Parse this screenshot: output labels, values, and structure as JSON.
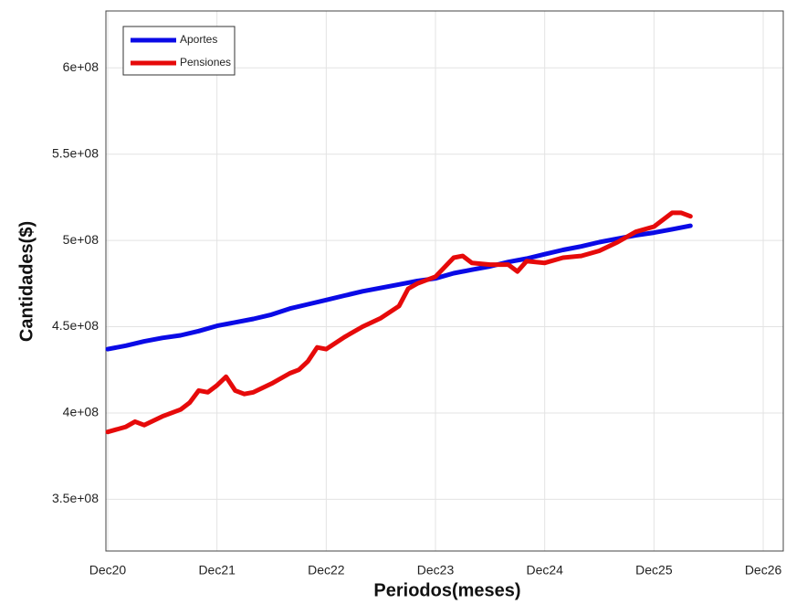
{
  "chart_data": {
    "type": "line",
    "xlabel": "Periodos(meses)",
    "ylabel": "Cantidades($)",
    "xlim": [
      -0.2,
      74.2
    ],
    "xticks": [
      {
        "value": 0,
        "label": "Dec20"
      },
      {
        "value": 12,
        "label": "Dec21"
      },
      {
        "value": 24,
        "label": "Dec22"
      },
      {
        "value": 36,
        "label": "Dec23"
      },
      {
        "value": 48,
        "label": "Dec24"
      },
      {
        "value": 60,
        "label": "Dec25"
      },
      {
        "value": 72,
        "label": "Dec26"
      }
    ],
    "ylim": [
      320000000,
      633000000
    ],
    "yticks": [
      {
        "value": 350000000,
        "label": "3.5e+08"
      },
      {
        "value": 400000000,
        "label": "4e+08"
      },
      {
        "value": 450000000,
        "label": "4.5e+08"
      },
      {
        "value": 500000000,
        "label": "5e+08"
      },
      {
        "value": 550000000,
        "label": "5.5e+08"
      },
      {
        "value": 600000000,
        "label": "6e+08"
      }
    ],
    "grid": true,
    "legend": "upper left",
    "series": [
      {
        "name": "Aportes",
        "color": "#0a0ae6",
        "x": [
          0,
          2,
          4,
          6,
          8,
          10,
          12,
          14,
          16,
          18,
          20,
          22,
          24,
          26,
          28,
          30,
          32,
          34,
          36,
          38,
          40,
          42,
          44,
          46,
          48,
          50,
          52,
          54,
          56,
          58,
          60,
          62,
          64
        ],
        "values": [
          437000000,
          439000000,
          441500000,
          443500000,
          445000000,
          447500000,
          450500000,
          452500000,
          454500000,
          457000000,
          460500000,
          463000000,
          465500000,
          468000000,
          470500000,
          472500000,
          474500000,
          476500000,
          478000000,
          481000000,
          483000000,
          485000000,
          487500000,
          489500000,
          492000000,
          494500000,
          496500000,
          499000000,
          501000000,
          503000000,
          504500000,
          506500000,
          508500000
        ]
      },
      {
        "name": "Pensiones",
        "color": "#e60a0a",
        "x": [
          0,
          2,
          3,
          4,
          6,
          8,
          9,
          10,
          11,
          12,
          13,
          14,
          15,
          16,
          18,
          20,
          21,
          22,
          23,
          24,
          26,
          28,
          30,
          32,
          33,
          34,
          36,
          38,
          39,
          40,
          42,
          44,
          45,
          46,
          48,
          50,
          52,
          54,
          56,
          58,
          60,
          62,
          63,
          64
        ],
        "values": [
          389000000,
          392000000,
          395000000,
          393000000,
          398000000,
          402000000,
          406000000,
          413000000,
          412000000,
          416000000,
          421000000,
          413000000,
          411000000,
          412000000,
          417000000,
          423000000,
          425000000,
          430000000,
          438000000,
          437000000,
          444000000,
          450000000,
          455000000,
          462000000,
          472000000,
          475000000,
          479000000,
          490000000,
          491000000,
          487000000,
          486000000,
          486000000,
          482000000,
          488000000,
          487000000,
          490000000,
          491000000,
          494000000,
          499000000,
          505000000,
          508000000,
          516000000,
          516000000,
          514000000
        ]
      }
    ]
  }
}
